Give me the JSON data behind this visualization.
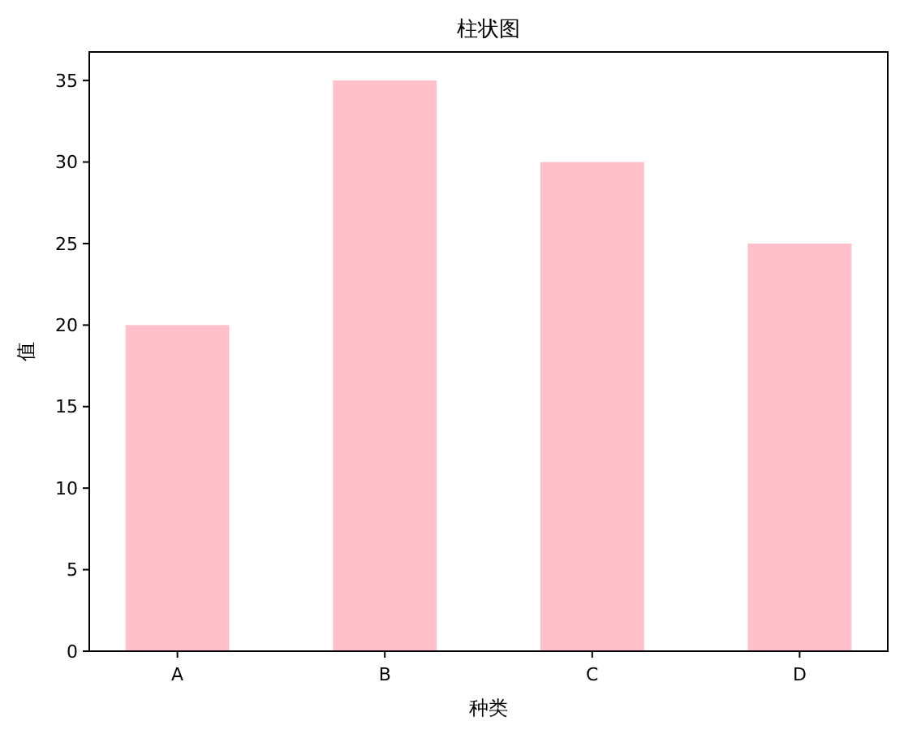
{
  "chart_data": {
    "type": "bar",
    "title": "柱状图",
    "xlabel": "种类",
    "ylabel": "值",
    "categories": [
      "A",
      "B",
      "C",
      "D"
    ],
    "values": [
      20,
      35,
      30,
      25
    ],
    "color": "#ffc0cb",
    "ylim": [
      0,
      36.75
    ],
    "yticks": [
      0,
      5,
      10,
      15,
      20,
      25,
      30,
      35
    ],
    "grid": false
  }
}
